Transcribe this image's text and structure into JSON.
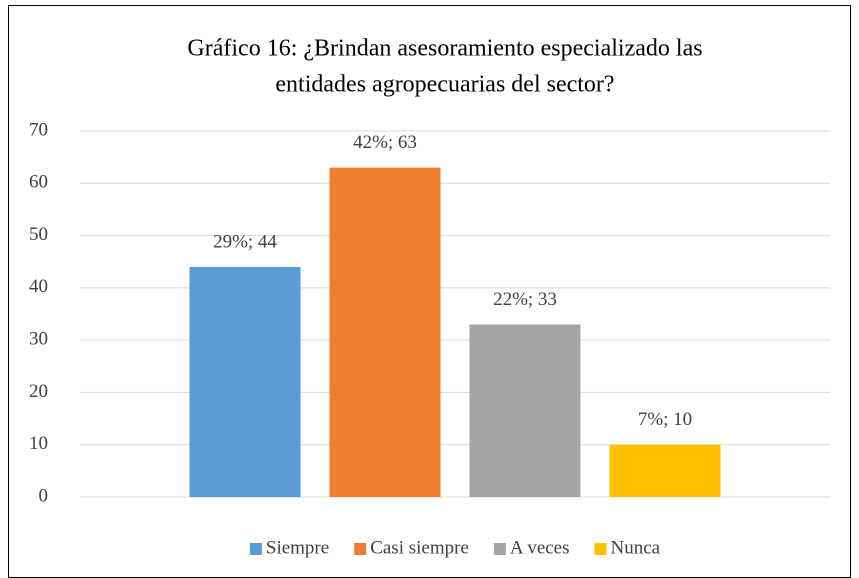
{
  "chart_data": {
    "type": "bar",
    "title": [
      "Gráfico 16: ¿Brindan asesoramiento especializado las",
      "entidades agropecuarias del sector?"
    ],
    "categories": [
      null
    ],
    "series": [
      {
        "name": "Siempre",
        "color": "#5b9bd5",
        "values": [
          44
        ],
        "value_labels": [
          "29%; 44"
        ]
      },
      {
        "name": "Casi siempre",
        "color": "#ed7d31",
        "values": [
          63
        ],
        "value_labels": [
          "42%; 63"
        ]
      },
      {
        "name": "A veces",
        "color": "#a5a5a5",
        "values": [
          33
        ],
        "value_labels": [
          "22%; 33"
        ]
      },
      {
        "name": "Nunca",
        "color": "#ffc000",
        "values": [
          10
        ],
        "value_labels": [
          "7%; 10"
        ]
      }
    ],
    "ylim": [
      0,
      70
    ],
    "yticks": [
      0,
      10,
      20,
      30,
      40,
      50,
      60,
      70
    ],
    "grid": true,
    "legend": "bottom"
  }
}
